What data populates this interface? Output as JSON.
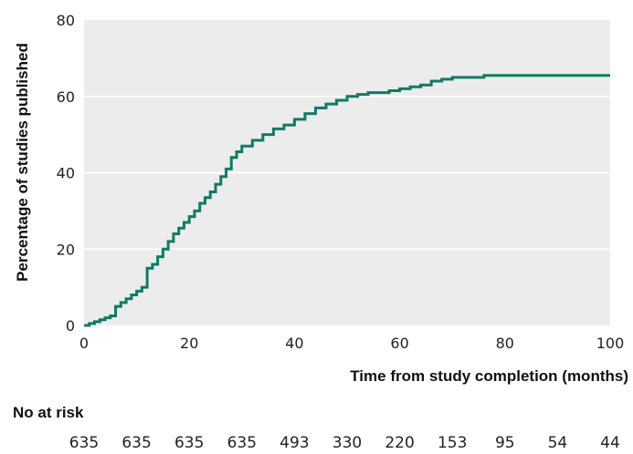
{
  "chart_data": {
    "type": "line",
    "step": true,
    "xlabel": "Time from study completion (months)",
    "ylabel": "Percentage of studies published",
    "xlim": [
      0,
      100
    ],
    "ylim": [
      0,
      80
    ],
    "xticks": [
      "0",
      "20",
      "40",
      "60",
      "80",
      "100"
    ],
    "yticks": [
      "0",
      "20",
      "40",
      "60",
      "80"
    ],
    "grid": true,
    "colors": {
      "line": "#117a65",
      "plot_bg": "#ececec",
      "grid": "#ffffff"
    },
    "series": [
      {
        "x": [
          0,
          1,
          2,
          3,
          4,
          5,
          6,
          7,
          8,
          9,
          10,
          11,
          12,
          13,
          14,
          15,
          16,
          17,
          18,
          19,
          20,
          21,
          22,
          23,
          24,
          25,
          26,
          27,
          28,
          29,
          30,
          32,
          34,
          36,
          38,
          40,
          42,
          44,
          46,
          48,
          50,
          52,
          54,
          56,
          58,
          60,
          62,
          64,
          66,
          68,
          70,
          72,
          74,
          76,
          78,
          80,
          85,
          90,
          95,
          100
        ],
        "y": [
          0,
          0.5,
          1,
          1.5,
          2,
          2.5,
          5,
          6,
          7,
          8,
          9,
          10,
          15,
          16,
          18,
          20,
          22,
          24,
          25.5,
          27,
          28.5,
          30,
          32,
          33.5,
          35,
          37,
          39,
          41,
          44,
          45.5,
          47,
          48.5,
          50,
          51.5,
          52.5,
          54,
          55.5,
          57,
          58,
          59,
          60,
          60.5,
          61,
          61,
          61.5,
          62,
          62.5,
          63,
          64,
          64.5,
          65,
          65,
          65,
          65.5,
          65.5,
          65.5,
          65.5,
          65.5,
          65.5,
          65.5
        ]
      }
    ]
  },
  "risk_table": {
    "title": "No at risk",
    "counts": [
      "635",
      "635",
      "635",
      "635",
      "493",
      "330",
      "220",
      "153",
      "95",
      "54",
      "44"
    ]
  }
}
